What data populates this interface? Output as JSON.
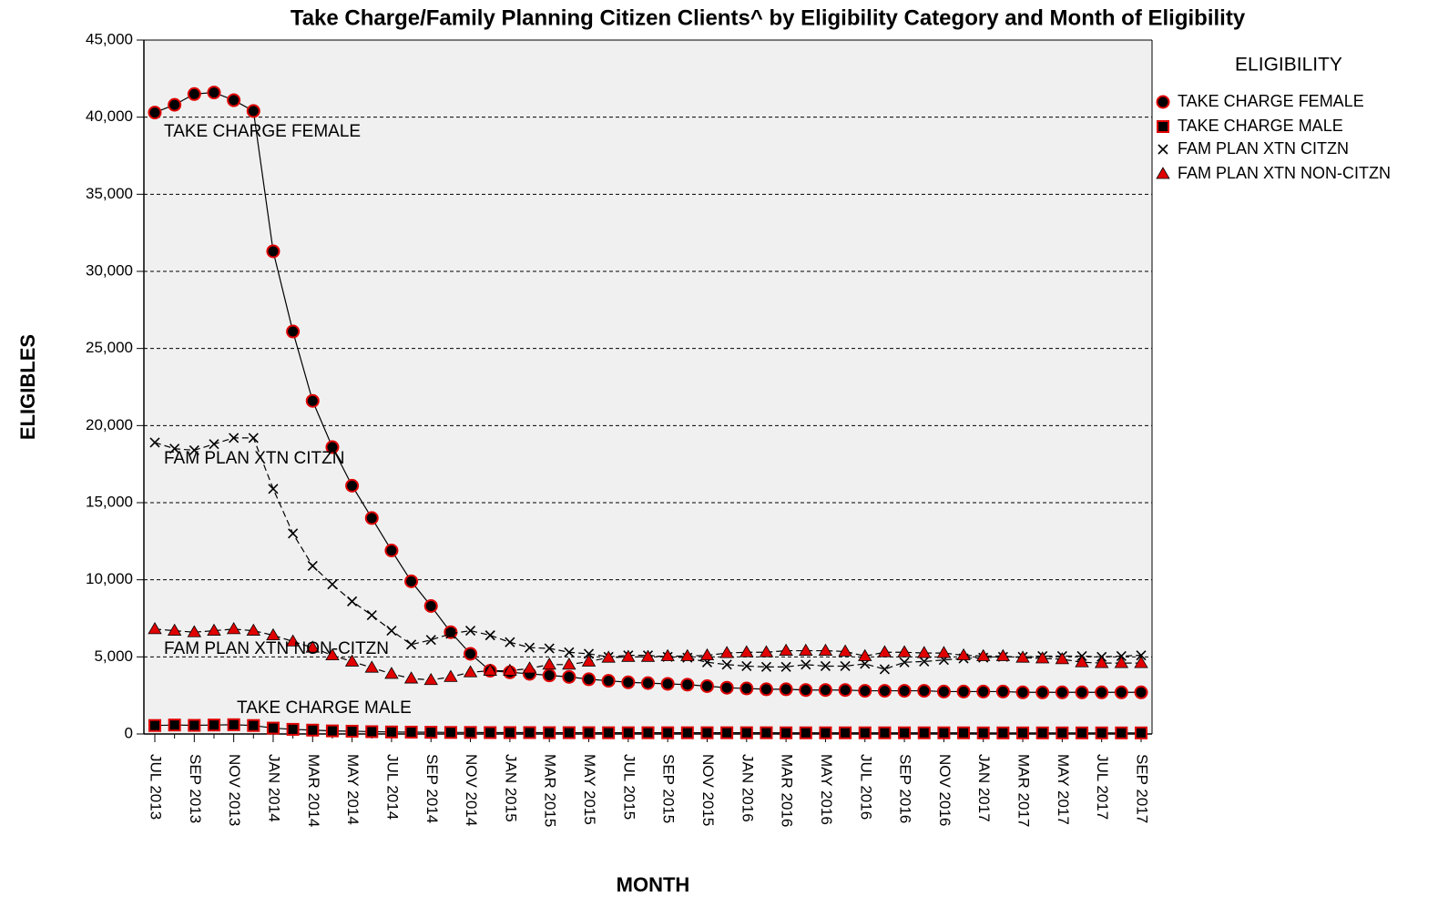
{
  "chart_data": {
    "type": "line",
    "title": "Take Charge/Family Planning Citizen Clients^ by Eligibility Category and Month of Eligibility",
    "x_label": "MONTH",
    "y_label": "ELIGIBLES",
    "legend_title": "ELIGIBILITY",
    "legend_position": "right",
    "grid": true,
    "ylim": [
      0,
      45000
    ],
    "yticks": [
      0,
      {
        "value": 5000,
        "label": "5,000"
      },
      {
        "value": 10000,
        "label": "10,000"
      },
      {
        "value": 15000,
        "label": "15,000"
      },
      {
        "value": 20000,
        "label": "20,000"
      },
      {
        "value": 25000,
        "label": "25,000"
      },
      {
        "value": 30000,
        "label": "30,000"
      },
      {
        "value": 35000,
        "label": "35,000"
      },
      {
        "value": 40000,
        "label": "40,000"
      },
      {
        "value": 45000,
        "label": "45,000"
      }
    ],
    "categories": [
      "JUL 2013",
      null,
      "SEP 2013",
      null,
      "NOV 2013",
      null,
      "JAN 2014",
      null,
      "MAR 2014",
      null,
      "MAY 2014",
      null,
      "JUL 2014",
      null,
      "SEP 2014",
      null,
      "NOV 2014",
      null,
      "JAN 2015",
      null,
      "MAR 2015",
      null,
      "MAY 2015",
      null,
      "JUL 2015",
      null,
      "SEP 2015",
      null,
      "NOV 2015",
      null,
      "JAN 2016",
      null,
      "MAR 2016",
      null,
      "MAY 2016",
      null,
      "JUL 2016",
      null,
      "SEP 2016",
      null,
      "NOV 2016",
      null,
      "JAN 2017",
      null,
      "MAR 2017",
      null,
      "MAY 2017",
      null,
      "JUL 2017",
      null,
      "SEP 2017"
    ],
    "series": [
      {
        "name": "TAKE CHARGE FEMALE",
        "color": "#e00000",
        "marker": "circle",
        "line_style": "solid",
        "values": [
          40300,
          40800,
          41500,
          41600,
          41100,
          40400,
          31300,
          26100,
          21600,
          18600,
          16100,
          14000,
          11900,
          9900,
          8300,
          6600,
          5200,
          4100,
          4000,
          3900,
          3800,
          3700,
          3550,
          3450,
          3350,
          3300,
          3250,
          3200,
          3100,
          3000,
          2950,
          2900,
          2900,
          2850,
          2850,
          2850,
          2800,
          2800,
          2800,
          2800,
          2750,
          2750,
          2750,
          2750,
          2700,
          2700,
          2700,
          2700,
          2700,
          2700,
          2700
        ]
      },
      {
        "name": "TAKE CHARGE MALE",
        "color": "#e00000",
        "marker": "square",
        "line_style": "solid",
        "values": [
          550,
          580,
          560,
          580,
          600,
          550,
          380,
          300,
          250,
          200,
          180,
          150,
          130,
          120,
          110,
          100,
          100,
          90,
          90,
          90,
          85,
          85,
          85,
          80,
          80,
          80,
          80,
          80,
          80,
          80,
          80,
          80,
          75,
          75,
          75,
          75,
          75,
          75,
          75,
          75,
          75,
          75,
          70,
          70,
          70,
          70,
          70,
          70,
          70,
          70,
          70
        ]
      },
      {
        "name": "FAM PLAN XTN CITZN",
        "color": "#000000",
        "marker": "x",
        "line_style": "dashed",
        "values": [
          18900,
          18500,
          18400,
          18800,
          19200,
          19200,
          15900,
          13000,
          10900,
          9700,
          8600,
          7700,
          6700,
          5800,
          6100,
          6500,
          6700,
          6400,
          5950,
          5600,
          5550,
          5300,
          5200,
          5000,
          5100,
          5100,
          5000,
          4950,
          4650,
          4500,
          4400,
          4350,
          4350,
          4500,
          4400,
          4400,
          4550,
          4200,
          4650,
          4700,
          4800,
          4900,
          4950,
          5000,
          5000,
          5050,
          5050,
          5050,
          5000,
          5050,
          5100
        ]
      },
      {
        "name": "FAM PLAN XTN NON-CITZN",
        "color": "#e00000",
        "marker": "triangle",
        "line_style": "dashed",
        "values": [
          6800,
          6700,
          6600,
          6700,
          6800,
          6700,
          6400,
          6000,
          5600,
          5100,
          4700,
          4300,
          3900,
          3600,
          3500,
          3700,
          4000,
          4100,
          4100,
          4250,
          4500,
          4500,
          4700,
          4950,
          5000,
          5000,
          5050,
          5050,
          5100,
          5250,
          5300,
          5300,
          5400,
          5400,
          5400,
          5350,
          5050,
          5300,
          5300,
          5250,
          5250,
          5100,
          5050,
          5050,
          4950,
          4900,
          4850,
          4650,
          4600,
          4600,
          4600
        ]
      }
    ],
    "annotations": [
      "TAKE CHARGE FEMALE",
      "FAM PLAN XTN CITZN",
      "FAM PLAN XTN NON-CITZN",
      "TAKE CHARGE MALE"
    ]
  }
}
